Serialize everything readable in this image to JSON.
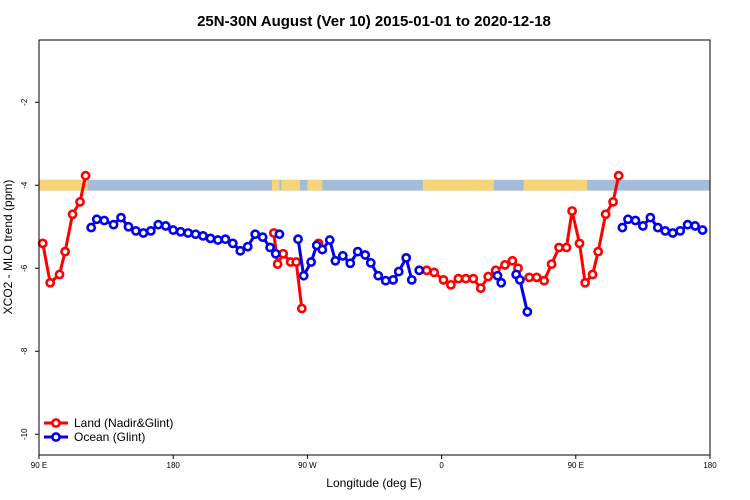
{
  "chart_data": {
    "type": "line",
    "title": "25N-30N August (Ver 10)   2015-01-01 to 2020-12-18",
    "xlabel": "Longitude (deg E)",
    "ylabel": "XCO2 - MLO trend (ppm)",
    "xlim": [
      90,
      270
    ],
    "ylim": [
      -10.5,
      -0.5
    ],
    "x_ticks": [
      {
        "value": 90,
        "label": "90 E"
      },
      {
        "value": 126,
        "label": "180"
      },
      {
        "value": 162,
        "label": "90 W"
      },
      {
        "value": 198,
        "label": "0"
      },
      {
        "value": 234,
        "label": "90 E"
      },
      {
        "value": 270,
        "label": "180"
      }
    ],
    "y_ticks": [
      {
        "value": -2,
        "label": "-2"
      },
      {
        "value": -4,
        "label": "-4"
      },
      {
        "value": -6,
        "label": "-6"
      },
      {
        "value": -8,
        "label": "-8"
      },
      {
        "value": -10,
        "label": "-10"
      }
    ],
    "surface_band": {
      "y_range": [
        -4.13,
        -3.87
      ],
      "ocean_color": "#a4bcd8",
      "land_color": "#f6d47a",
      "land_segments": [
        [
          90,
          103
        ],
        [
          152.5,
          154.5
        ],
        [
          155,
          160
        ],
        [
          162,
          166
        ],
        [
          193,
          212
        ],
        [
          220,
          237
        ]
      ]
    },
    "legend_position": "bottom-left",
    "series": [
      {
        "name": "Land (Nadir&Glint)",
        "color": "#ff0000",
        "segments": [
          [
            [
              91,
              -5.4
            ],
            [
              93,
              -6.35
            ],
            [
              95.5,
              -6.15
            ],
            [
              97,
              -5.6
            ],
            [
              99,
              -4.7
            ],
            [
              101,
              -4.4
            ],
            [
              102.5,
              -3.77
            ]
          ],
          [
            [
              153,
              -5.15
            ],
            [
              154,
              -5.9
            ],
            [
              155.5,
              -5.65
            ],
            [
              157.5,
              -5.85
            ],
            [
              159,
              -5.85
            ],
            [
              160.5,
              -6.97
            ]
          ],
          [
            [
              165,
              -5.4
            ]
          ],
          [
            [
              194,
              -6.05
            ],
            [
              196,
              -6.1
            ],
            [
              198.5,
              -6.28
            ],
            [
              200.5,
              -6.4
            ],
            [
              202.5,
              -6.25
            ],
            [
              204.5,
              -6.25
            ],
            [
              206.5,
              -6.25
            ],
            [
              208.5,
              -6.48
            ],
            [
              210.5,
              -6.2
            ],
            [
              212.5,
              -6.05
            ],
            [
              215,
              -5.92
            ],
            [
              217,
              -5.82
            ],
            [
              218.5,
              -6.0
            ]
          ],
          [
            [
              221.5,
              -6.22
            ],
            [
              223.5,
              -6.22
            ],
            [
              225.5,
              -6.3
            ],
            [
              227.5,
              -5.9
            ],
            [
              229.5,
              -5.5
            ],
            [
              231.5,
              -5.5
            ],
            [
              233,
              -4.62
            ],
            [
              235,
              -5.4
            ],
            [
              236.5,
              -6.35
            ],
            [
              238.5,
              -6.15
            ],
            [
              240,
              -5.6
            ],
            [
              242,
              -4.7
            ],
            [
              244,
              -4.4
            ],
            [
              245.5,
              -3.77
            ]
          ]
        ]
      },
      {
        "name": "Ocean (Glint)",
        "color": "#0000ee",
        "segments": [
          [
            [
              104,
              -5.02
            ],
            [
              105.5,
              -4.82
            ],
            [
              107.5,
              -4.85
            ],
            [
              110,
              -4.95
            ],
            [
              112,
              -4.78
            ],
            [
              114,
              -5.0
            ],
            [
              116,
              -5.1
            ],
            [
              118,
              -5.15
            ],
            [
              120,
              -5.1
            ],
            [
              122,
              -4.95
            ],
            [
              124,
              -4.98
            ],
            [
              126,
              -5.08
            ],
            [
              128,
              -5.12
            ],
            [
              130,
              -5.15
            ],
            [
              132,
              -5.18
            ],
            [
              134,
              -5.22
            ],
            [
              136,
              -5.28
            ],
            [
              138,
              -5.32
            ],
            [
              140,
              -5.3
            ],
            [
              142,
              -5.4
            ],
            [
              144,
              -5.58
            ],
            [
              146,
              -5.48
            ],
            [
              148,
              -5.18
            ],
            [
              150,
              -5.25
            ],
            [
              152,
              -5.5
            ],
            [
              153.5,
              -5.65
            ]
          ],
          [
            [
              154.5,
              -5.18
            ]
          ],
          [
            [
              159.5,
              -5.3
            ],
            [
              161,
              -6.18
            ],
            [
              163,
              -5.85
            ],
            [
              164.5,
              -5.45
            ],
            [
              166,
              -5.55
            ],
            [
              168,
              -5.32
            ],
            [
              169.5,
              -5.82
            ],
            [
              171.5,
              -5.7
            ],
            [
              173.5,
              -5.88
            ],
            [
              175.5,
              -5.6
            ],
            [
              177.5,
              -5.68
            ],
            [
              179,
              -5.87
            ],
            [
              181,
              -6.18
            ],
            [
              183,
              -6.3
            ],
            [
              185,
              -6.28
            ],
            [
              186.5,
              -6.08
            ],
            [
              188.5,
              -5.75
            ],
            [
              190,
              -6.28
            ]
          ],
          [
            [
              192,
              -6.05
            ]
          ],
          [
            [
              213,
              -6.18
            ],
            [
              214,
              -6.35
            ]
          ],
          [
            [
              218,
              -6.15
            ],
            [
              219,
              -6.28
            ],
            [
              221,
              -7.05
            ]
          ],
          [
            [
              246.5,
              -5.02
            ],
            [
              248,
              -4.82
            ],
            [
              250,
              -4.85
            ],
            [
              252,
              -4.98
            ],
            [
              254,
              -4.78
            ],
            [
              256,
              -5.02
            ],
            [
              258,
              -5.1
            ],
            [
              260,
              -5.15
            ],
            [
              262,
              -5.1
            ],
            [
              264,
              -4.95
            ],
            [
              266,
              -4.98
            ],
            [
              268,
              -5.08
            ]
          ]
        ]
      }
    ]
  }
}
